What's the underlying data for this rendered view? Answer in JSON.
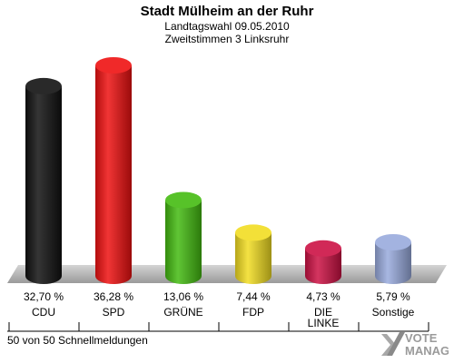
{
  "header": {
    "title": "Stadt Mülheim an der Ruhr",
    "subtitle1": "Landtagswahl 09.05.2010",
    "subtitle2": "Zweitstimmen 3 Linksruhr"
  },
  "footer": {
    "text": "50 von 50 Schnellmeldungen"
  },
  "logo": {
    "text_top": "VOTE",
    "text_bottom": "MANAGER",
    "icon": "cross-check-icon"
  },
  "chart_data": {
    "type": "bar",
    "categories": [
      "CDU",
      "SPD",
      "GRÜNE",
      "FDP",
      "DIE LINKE",
      "Sonstige"
    ],
    "values": [
      32.7,
      36.28,
      13.06,
      7.44,
      4.73,
      5.79
    ],
    "value_labels": [
      "32,70 %",
      "36,28 %",
      "13,06 %",
      "7,44 %",
      "4,73 %",
      "5,79 %"
    ],
    "colors": [
      "#111111",
      "#ee1111",
      "#44bb11",
      "#f2dd22",
      "#cc1144",
      "#99aadd"
    ],
    "title": "Stadt Mülheim an der Ruhr",
    "ylim": [
      0,
      36.28
    ]
  }
}
